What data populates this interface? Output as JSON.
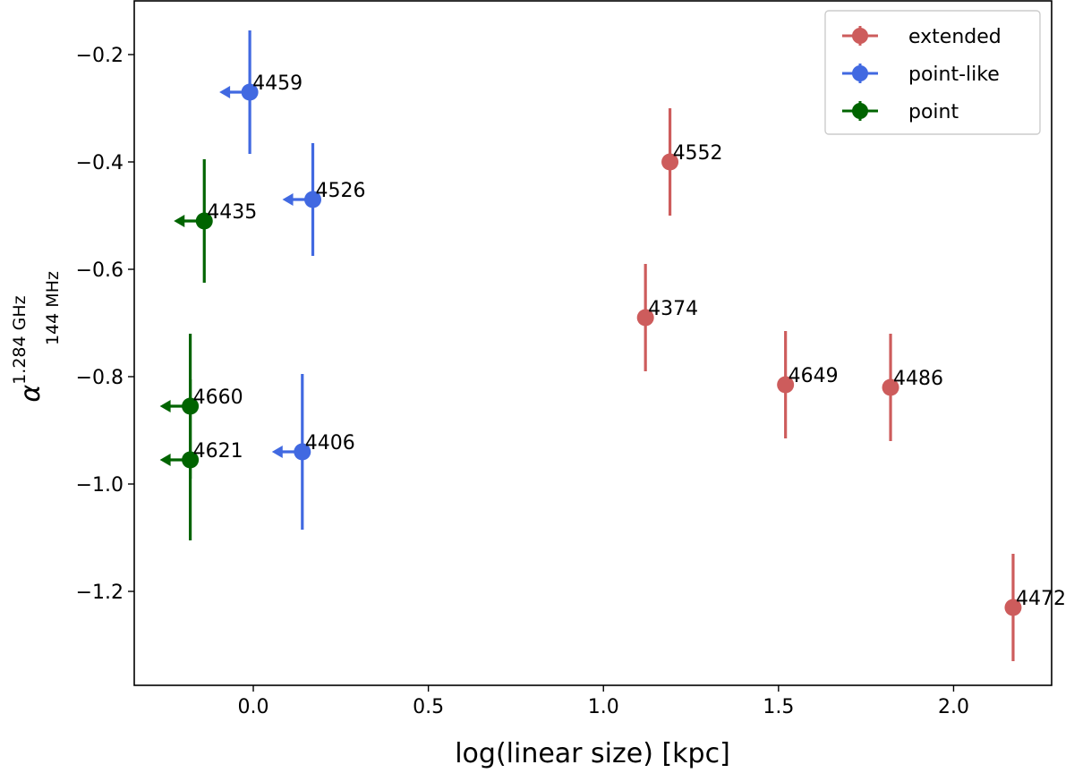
{
  "chart_data": {
    "type": "scatter",
    "title": "",
    "xlabel": "log(linear size) [kpc]",
    "ylabel": {
      "symbol": "α",
      "superscript": "1.284 GHz",
      "subscript": "144 MHz"
    },
    "xlim": [
      -0.34,
      2.28
    ],
    "ylim": [
      -1.375,
      -0.1
    ],
    "xticks": [
      0.0,
      0.5,
      1.0,
      1.5,
      2.0
    ],
    "xtick_labels": [
      "0.0",
      "0.5",
      "1.0",
      "1.5",
      "2.0"
    ],
    "yticks": [
      -0.2,
      -0.4,
      -0.6,
      -0.8,
      -1.0,
      -1.2
    ],
    "ytick_labels": [
      "−0.2",
      "−0.4",
      "−0.6",
      "−0.8",
      "−1.0",
      "−1.2"
    ],
    "grid": false,
    "legend_position": "top-right",
    "series": [
      {
        "name": "extended",
        "color": "#cd5c5c",
        "points": [
          {
            "label": "4552",
            "x": 1.19,
            "y": -0.4,
            "yerr": 0.1,
            "upper_limit": false
          },
          {
            "label": "4374",
            "x": 1.12,
            "y": -0.69,
            "yerr": 0.1,
            "upper_limit": false
          },
          {
            "label": "4649",
            "x": 1.52,
            "y": -0.815,
            "yerr": 0.1,
            "upper_limit": false
          },
          {
            "label": "4486",
            "x": 1.82,
            "y": -0.82,
            "yerr": 0.1,
            "upper_limit": false
          },
          {
            "label": "4472",
            "x": 2.17,
            "y": -1.23,
            "yerr": 0.1,
            "upper_limit": false
          }
        ]
      },
      {
        "name": "point-like",
        "color": "#4169e1",
        "points": [
          {
            "label": "4459",
            "x": -0.01,
            "y": -0.27,
            "yerr": 0.115,
            "upper_limit": true
          },
          {
            "label": "4526",
            "x": 0.17,
            "y": -0.47,
            "yerr": 0.105,
            "upper_limit": true
          },
          {
            "label": "4406",
            "x": 0.14,
            "y": -0.94,
            "yerr": 0.145,
            "upper_limit": true
          }
        ]
      },
      {
        "name": "point",
        "color": "#006400",
        "points": [
          {
            "label": "4435",
            "x": -0.14,
            "y": -0.51,
            "yerr": 0.115,
            "upper_limit": true
          },
          {
            "label": "4660",
            "x": -0.18,
            "y": -0.855,
            "yerr": 0.135,
            "upper_limit": true
          },
          {
            "label": "4621",
            "x": -0.18,
            "y": -0.955,
            "yerr": 0.15,
            "upper_limit": true
          }
        ]
      }
    ]
  }
}
